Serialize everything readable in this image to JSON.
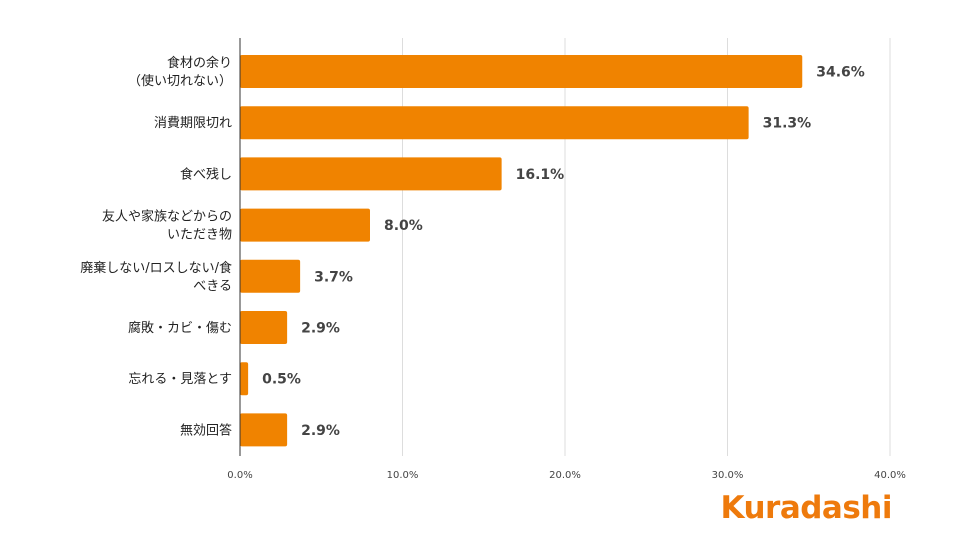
{
  "chart_data": {
    "type": "bar",
    "orientation": "horizontal",
    "categories": [
      [
        "食材の余り",
        "（使い切れない）"
      ],
      [
        "消費期限切れ"
      ],
      [
        "食べ残し"
      ],
      [
        "友人や家族などからの",
        "いただき物"
      ],
      [
        "廃棄しない/ロスしない/食",
        "べきる"
      ],
      [
        "腐敗・カビ・傷む"
      ],
      [
        "忘れる・見落とす"
      ],
      [
        "無効回答"
      ]
    ],
    "values": [
      34.6,
      31.3,
      16.1,
      8.0,
      3.7,
      2.9,
      0.5,
      2.9
    ],
    "value_labels": [
      "34.6%",
      "31.3%",
      "16.1%",
      "8.0%",
      "3.7%",
      "2.9%",
      "0.5%",
      "2.9%"
    ],
    "xlim": [
      0,
      40
    ],
    "x_ticks": [
      0,
      10,
      20,
      30,
      40
    ],
    "x_tick_labels": [
      "0.0%",
      "10.0%",
      "20.0%",
      "30.0%",
      "40.0%"
    ],
    "grid": true,
    "bar_color": "#f08300",
    "title": "",
    "xlabel": "",
    "ylabel": ""
  },
  "logo": {
    "text": "Kuradashi",
    "color": "#ee7a0c"
  }
}
